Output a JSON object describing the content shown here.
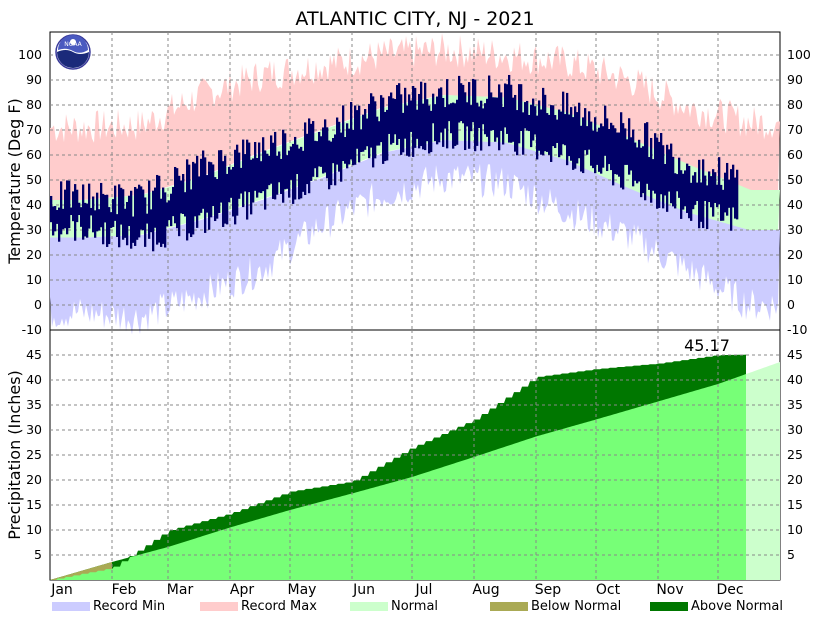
{
  "chart_data": [
    {
      "type": "bar",
      "panel": "temperature",
      "title": "ATLANTIC CITY, NJ - 2021",
      "ylabel": "Temperature (Deg F)",
      "ylim": [
        -10,
        110
      ],
      "yticks": [
        "100",
        "90",
        "80",
        "70",
        "60",
        "50",
        "40",
        "30",
        "20",
        "10",
        "0",
        "-10"
      ],
      "grid": true,
      "series": [
        {
          "name": "Record Min",
          "color": "#ccccff",
          "description": "daily record low, min of band; seasonal values by month Jan-Dec",
          "monthly_values": [
            -3,
            -5,
            4,
            14,
            32,
            44,
            51,
            49,
            38,
            28,
            14,
            0
          ]
        },
        {
          "name": "Record Max",
          "color": "#ffcccc",
          "monthly_values": [
            71,
            72,
            84,
            92,
            96,
            100,
            102,
            100,
            97,
            90,
            79,
            73
          ]
        },
        {
          "name": "Normal",
          "color": "#ccffcc",
          "normal_low_monthly": [
            27,
            28,
            34,
            42,
            51,
            61,
            66,
            65,
            58,
            47,
            37,
            30
          ],
          "normal_high_monthly": [
            42,
            44,
            51,
            61,
            70,
            79,
            84,
            83,
            77,
            67,
            56,
            46
          ]
        },
        {
          "name": "Observed",
          "color": "#000066",
          "observed_low_monthly": [
            31,
            26,
            33,
            42,
            50,
            62,
            68,
            67,
            60,
            50,
            37,
            33
          ],
          "observed_high_monthly": [
            43,
            42,
            55,
            63,
            70,
            81,
            85,
            86,
            78,
            71,
            56,
            49
          ]
        }
      ]
    },
    {
      "type": "area",
      "panel": "precipitation",
      "ylabel": "Precipitation (Inches)",
      "ylim": [
        0,
        47
      ],
      "yticks": [
        "45",
        "40",
        "35",
        "30",
        "25",
        "20",
        "15",
        "10",
        "5"
      ],
      "grid": true,
      "x": [
        "Jan",
        "Feb",
        "Mar",
        "Apr",
        "May",
        "Jun",
        "Jul",
        "Aug",
        "Sep",
        "Oct",
        "Nov",
        "Dec"
      ],
      "series": [
        {
          "name": "Normal",
          "cumulative_end_of_month": [
            3.6,
            6.6,
            10.5,
            14.0,
            17.3,
            20.6,
            24.6,
            28.7,
            32.1,
            35.7,
            39.2,
            43.6
          ]
        },
        {
          "name": "Observed",
          "cumulative_end_of_month": [
            2.4,
            9.9,
            13.3,
            17.7,
            19.7,
            26.5,
            32.1,
            40.6,
            42.2,
            43.3,
            45.0,
            45.17
          ]
        }
      ],
      "total_label": "45.17"
    }
  ],
  "months": [
    "Jan",
    "Feb",
    "Mar",
    "Apr",
    "May",
    "Jun",
    "Jul",
    "Aug",
    "Sep",
    "Oct",
    "Nov",
    "Dec"
  ],
  "legend": [
    {
      "label": "Record Min",
      "color": "#ccccff"
    },
    {
      "label": "Record Max",
      "color": "#ffcccc"
    },
    {
      "label": "Normal",
      "color": "#ccffcc"
    },
    {
      "label": "Below Normal",
      "color": "#aaaa55"
    },
    {
      "label": "Above Normal",
      "color": "#007700"
    }
  ],
  "logo": {
    "text": "NOAA",
    "icon": "noaa-logo-icon"
  },
  "colors": {
    "record_min": "#ccccff",
    "record_max": "#ffcccc",
    "normal": "#ccffcc",
    "normal_precip": "#77ff77",
    "above_normal": "#007700",
    "below_normal": "#aaaa55",
    "observed": "#000066"
  }
}
